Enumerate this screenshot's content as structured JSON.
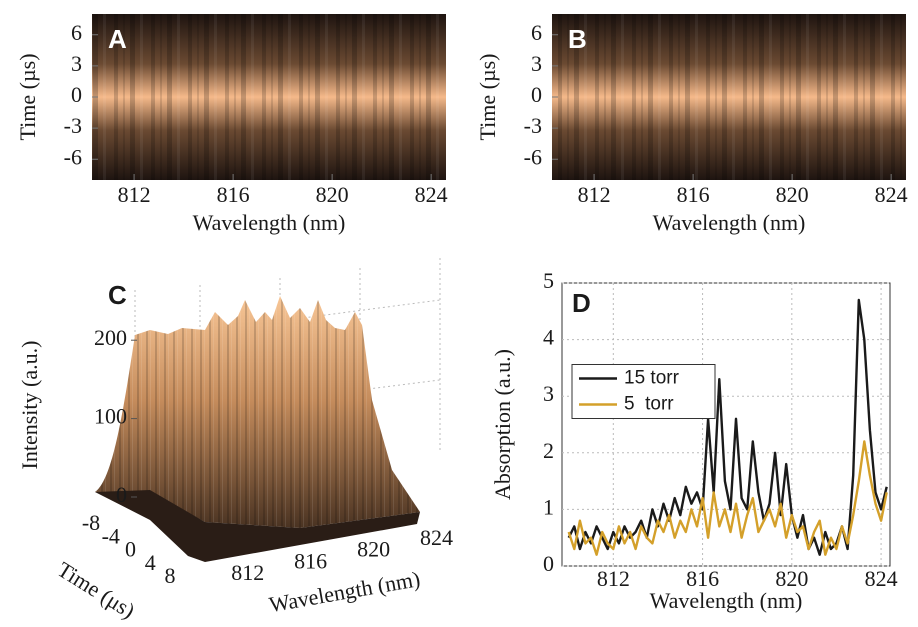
{
  "chart_data": [
    {
      "type": "heatmap",
      "label": "A",
      "colormap": "copper",
      "x_label": "Wavelength (nm)",
      "y_label": "Time (µs)",
      "xlim": [
        810.3,
        824.6
      ],
      "xticks": [
        812,
        816,
        820,
        824
      ],
      "ylim": [
        -8,
        8
      ],
      "yticks": [
        -6,
        -3,
        0,
        3,
        6
      ]
    },
    {
      "type": "heatmap",
      "label": "B",
      "colormap": "copper",
      "x_label": "Wavelength (nm)",
      "y_label": "Time (µs)",
      "xlim": [
        810.3,
        824.6
      ],
      "xticks": [
        812,
        816,
        820,
        824
      ],
      "ylim": [
        -8,
        8
      ],
      "yticks": [
        -6,
        -3,
        0,
        3,
        6
      ]
    },
    {
      "type": "surface",
      "label": "C",
      "colormap": "copper",
      "x_label": "Wavelength (nm)",
      "y_label": "Time (μs)",
      "z_label": "Intensity (a.u.)",
      "xlim": [
        810.3,
        824.6
      ],
      "xticks": [
        812,
        816,
        820,
        824
      ],
      "ylim": [
        -8,
        8
      ],
      "yticks": [
        -8,
        -4,
        0,
        4,
        8
      ],
      "zlim": [
        0,
        250
      ],
      "zticks": [
        0,
        100,
        200
      ]
    },
    {
      "type": "line",
      "label": "D",
      "grid": true,
      "legend": "center left",
      "x_label": "Wavelength (nm)",
      "y_label": "Absorption (a.u.)",
      "xlim": [
        809.7,
        824.4
      ],
      "xticks": [
        812,
        816,
        820,
        824
      ],
      "ylim": [
        0,
        5
      ],
      "yticks": [
        0,
        1,
        2,
        3,
        4,
        5
      ],
      "x": [
        810,
        810.25,
        810.5,
        810.75,
        811,
        811.25,
        811.5,
        811.75,
        812,
        812.25,
        812.5,
        812.75,
        813,
        813.25,
        813.5,
        813.75,
        814,
        814.25,
        814.5,
        814.75,
        815,
        815.25,
        815.5,
        815.75,
        816,
        816.25,
        816.5,
        816.75,
        817,
        817.25,
        817.5,
        817.75,
        818,
        818.25,
        818.5,
        818.75,
        819,
        819.25,
        819.5,
        819.75,
        820,
        820.25,
        820.5,
        820.75,
        821,
        821.25,
        821.5,
        821.75,
        822,
        822.25,
        822.5,
        822.75,
        823,
        823.25,
        823.5,
        823.75,
        824,
        824.25
      ],
      "series": [
        {
          "name": "15 torr",
          "color": "#1a1a1a",
          "values": [
            0.5,
            0.7,
            0.3,
            0.6,
            0.4,
            0.7,
            0.5,
            0.3,
            0.6,
            0.4,
            0.7,
            0.5,
            0.6,
            0.8,
            0.5,
            1.0,
            0.7,
            1.1,
            0.8,
            1.2,
            0.9,
            1.4,
            1.1,
            1.3,
            1.0,
            2.6,
            1.3,
            3.3,
            1.5,
            1.0,
            2.6,
            1.2,
            1.0,
            2.2,
            1.3,
            0.8,
            1.1,
            2.0,
            0.9,
            1.8,
            0.9,
            0.5,
            0.9,
            0.3,
            0.5,
            0.2,
            0.6,
            0.3,
            0.4,
            0.7,
            0.3,
            1.6,
            4.7,
            4.0,
            2.4,
            1.3,
            1.0,
            1.4
          ]
        },
        {
          "name": "5  torr",
          "color": "#d4a02a",
          "values": [
            0.6,
            0.3,
            0.8,
            0.4,
            0.5,
            0.2,
            0.6,
            0.4,
            0.3,
            0.7,
            0.4,
            0.6,
            0.3,
            0.7,
            0.5,
            0.4,
            0.8,
            0.6,
            0.9,
            0.5,
            0.8,
            0.6,
            1.0,
            0.7,
            1.2,
            0.5,
            1.3,
            0.7,
            1.0,
            0.6,
            1.1,
            0.5,
            0.9,
            1.2,
            0.6,
            0.8,
            1.0,
            0.7,
            1.1,
            0.5,
            0.9,
            0.6,
            0.7,
            0.3,
            0.6,
            0.8,
            0.2,
            0.5,
            0.3,
            0.7,
            0.4,
            0.9,
            1.5,
            2.2,
            1.6,
            1.1,
            0.8,
            1.3
          ]
        }
      ]
    }
  ]
}
